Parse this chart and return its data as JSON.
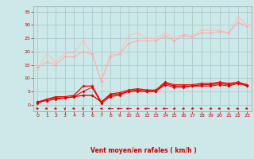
{
  "xlabel": "Vent moyen/en rafales ( km/h )",
  "bg_color": "#cce8e8",
  "grid_color": "#aacccc",
  "x_ticks": [
    0,
    1,
    2,
    3,
    4,
    5,
    6,
    7,
    8,
    9,
    10,
    11,
    12,
    13,
    14,
    15,
    16,
    17,
    18,
    19,
    20,
    21,
    22,
    23
  ],
  "y_ticks": [
    0,
    5,
    10,
    15,
    20,
    25,
    30,
    35
  ],
  "ylim": [
    -2.5,
    37
  ],
  "xlim": [
    -0.5,
    23.5
  ],
  "line1_x": [
    0,
    1,
    2,
    3,
    4,
    5,
    6,
    7,
    8,
    9,
    10,
    11,
    12,
    13,
    14,
    15,
    16,
    17,
    18,
    19,
    20,
    21,
    22,
    23
  ],
  "line1_y": [
    14,
    19,
    16,
    19.5,
    19.5,
    24,
    19,
    8.5,
    19,
    19,
    26,
    27,
    25,
    25,
    27,
    25,
    26.5,
    26,
    28,
    28,
    28,
    27,
    33,
    30
  ],
  "line1_color": "#ffbbbb",
  "line2_x": [
    0,
    1,
    2,
    3,
    4,
    5,
    6,
    7,
    8,
    9,
    10,
    11,
    12,
    13,
    14,
    15,
    16,
    17,
    18,
    19,
    20,
    21,
    22,
    23
  ],
  "line2_y": [
    14,
    16,
    15,
    18,
    18,
    20,
    19,
    9,
    18,
    19,
    23,
    24,
    24,
    24,
    26,
    24,
    26,
    25.5,
    27,
    27,
    27.5,
    27,
    31,
    29.5
  ],
  "line2_color": "#ffaaaa",
  "line3_x": [
    0,
    1,
    2,
    3,
    4,
    5,
    6,
    7,
    8,
    9,
    10,
    11,
    12,
    13,
    14,
    15,
    16,
    17,
    18,
    19,
    20,
    21,
    22,
    23
  ],
  "line3_y": [
    0.5,
    2,
    2.5,
    2.5,
    3,
    3.5,
    3.5,
    1,
    3.5,
    4,
    5,
    5.5,
    5,
    5,
    8,
    7,
    7,
    7,
    7.5,
    7.5,
    8,
    7.5,
    8,
    7.5
  ],
  "line3_color": "#cc0000",
  "line4_x": [
    0,
    1,
    2,
    3,
    4,
    5,
    6,
    7,
    8,
    9,
    10,
    11,
    12,
    13,
    14,
    15,
    16,
    17,
    18,
    19,
    20,
    21,
    22,
    23
  ],
  "line4_y": [
    1,
    2,
    3,
    3,
    3.5,
    7,
    7,
    1,
    4,
    4.5,
    5.5,
    6,
    5.5,
    5.5,
    8.5,
    7.5,
    7.5,
    7.5,
    8,
    8,
    8.5,
    8,
    8.5,
    7.5
  ],
  "line4_color": "#ff0000",
  "line5_x": [
    0,
    1,
    2,
    3,
    4,
    5,
    6,
    7,
    8,
    9,
    10,
    11,
    12,
    13,
    14,
    15,
    16,
    17,
    18,
    19,
    20,
    21,
    22,
    23
  ],
  "line5_y": [
    1,
    1.5,
    2,
    2.5,
    3,
    5,
    6.5,
    0.5,
    3,
    3.5,
    5,
    5,
    5,
    5,
    7.5,
    6.5,
    6.5,
    7,
    7,
    7,
    7.5,
    7,
    8,
    7
  ],
  "line5_color": "#dd0000",
  "arrow_angles": [
    45,
    45,
    45,
    0,
    45,
    0,
    0,
    225,
    270,
    270,
    270,
    315,
    270,
    315,
    270,
    315,
    315,
    315,
    45,
    315,
    45,
    45,
    45,
    45
  ],
  "arrow_color": "#cc0000",
  "tick_color": "#cc0000",
  "axis_color": "#999999",
  "font_color": "#cc0000"
}
